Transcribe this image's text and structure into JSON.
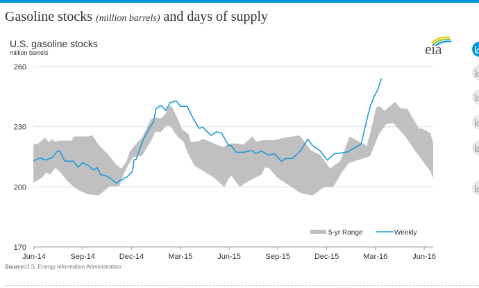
{
  "page": {
    "title_main": "Gasoline stocks",
    "title_units": "(million barrels)",
    "title_rest": "and days of supply",
    "accent_color": "#0096d7"
  },
  "logo": {
    "text": "eia",
    "icon": "eia-logo-icon"
  },
  "source": {
    "label": "Source:",
    "text": "U.S. Energy Information Administration"
  },
  "side_buttons": [
    {
      "icon": "line-chart-icon",
      "active": true
    },
    {
      "icon": "line-chart-icon",
      "active": false
    },
    {
      "icon": "line-chart-icon",
      "active": false
    },
    {
      "icon": "line-chart-icon",
      "active": false
    },
    {
      "icon": "line-chart-icon",
      "active": false
    },
    {
      "icon": "line-chart-icon",
      "active": false
    }
  ],
  "chart_data": {
    "type": "area",
    "title": "U.S. gasoline stocks",
    "subtitle": "million barrels",
    "xlabel": "",
    "ylabel": "million barrels",
    "x_unit": "months since Jun-14",
    "xlim": [
      0,
      24.55
    ],
    "ylim": [
      170,
      260
    ],
    "yticks": [
      170,
      200,
      230,
      260
    ],
    "ytick_labels": [
      "170",
      "200",
      "230",
      "260"
    ],
    "xticks": [
      0,
      3,
      6,
      9,
      12,
      15,
      18,
      21,
      24
    ],
    "xtick_labels": [
      "Jun-14",
      "Sep-14",
      "Dec-14",
      "Mar-15",
      "Jun-15",
      "Sep-15",
      "Dec-15",
      "Mar-16",
      "Jun-16"
    ],
    "grid": true,
    "legend": {
      "placement": "bottom-right",
      "entries": [
        "5-yr Range",
        "Weekly"
      ]
    },
    "colors": {
      "range": "#c0c0c0",
      "weekly": "#1a9bd7",
      "grid": "#dddddd",
      "axis": "#999999"
    },
    "series": [
      {
        "name": "5-yr Range",
        "kind": "band",
        "upper": [
          [
            -0.04,
            221.1
          ],
          [
            0.26,
            221.7
          ],
          [
            0.68,
            224.6
          ],
          [
            0.9,
            222.3
          ],
          [
            1.11,
            223.7
          ],
          [
            1.32,
            222.6
          ],
          [
            1.62,
            223.1
          ],
          [
            2.31,
            223.1
          ],
          [
            2.48,
            225.2
          ],
          [
            3.37,
            225.2
          ],
          [
            3.59,
            225.7
          ],
          [
            3.97,
            221.1
          ],
          [
            4.17,
            219.4
          ],
          [
            4.23,
            218.8
          ],
          [
            4.53,
            216.5
          ],
          [
            5.04,
            211.3
          ],
          [
            5.38,
            209.2
          ],
          [
            5.68,
            212.5
          ],
          [
            5.89,
            217.7
          ],
          [
            6.36,
            222.3
          ],
          [
            6.65,
            224.6
          ],
          [
            6.95,
            229.8
          ],
          [
            7.2,
            233.8
          ],
          [
            7.5,
            234.6
          ],
          [
            7.8,
            234.2
          ],
          [
            8.06,
            236.1
          ],
          [
            8.27,
            240.2
          ],
          [
            8.48,
            240.2
          ],
          [
            8.78,
            235
          ],
          [
            9.12,
            228.6
          ],
          [
            9.51,
            226.4
          ],
          [
            9.65,
            222.3
          ],
          [
            10.16,
            222.9
          ],
          [
            10.38,
            224
          ],
          [
            10.72,
            222.9
          ],
          [
            11.23,
            221.1
          ],
          [
            11.66,
            219.9
          ],
          [
            12.0,
            221.7
          ],
          [
            12.87,
            221.1
          ],
          [
            12.44,
            221.7
          ],
          [
            13.44,
            225.2
          ],
          [
            13.65,
            222.6
          ],
          [
            14.15,
            223.4
          ],
          [
            14.71,
            223.2
          ],
          [
            15.44,
            224.6
          ],
          [
            16.33,
            225.7
          ],
          [
            17.05,
            218.2
          ],
          [
            17.61,
            215.9
          ],
          [
            18.21,
            209.2
          ],
          [
            18.85,
            213.0
          ],
          [
            19.41,
            225.1
          ],
          [
            20.47,
            220.5
          ],
          [
            20.7,
            227.5
          ],
          [
            21.04,
            239.6
          ],
          [
            21.26,
            240.4
          ],
          [
            21.56,
            237.9
          ],
          [
            22.2,
            242.5
          ],
          [
            22.54,
            239.2
          ],
          [
            22.96,
            239
          ],
          [
            23.69,
            228.9
          ],
          [
            23.82,
            229.2
          ],
          [
            24.38,
            226.9
          ],
          [
            25.22,
            221.7
          ]
        ],
        "lower": [
          [
            -0.04,
            202.1
          ],
          [
            0.47,
            204.4
          ],
          [
            0.77,
            207.3
          ],
          [
            0.98,
            206.1
          ],
          [
            1.32,
            209.6
          ],
          [
            1.62,
            207.3
          ],
          [
            1.96,
            203.8
          ],
          [
            2.39,
            200.3
          ],
          [
            2.82,
            198
          ],
          [
            3.33,
            196.3
          ],
          [
            3.97,
            195.7
          ],
          [
            4.31,
            198
          ],
          [
            4.65,
            200.3
          ],
          [
            5.25,
            200.3
          ],
          [
            5.47,
            205.5
          ],
          [
            5.81,
            211.3
          ],
          [
            6.11,
            214.8
          ],
          [
            6.32,
            215.3
          ],
          [
            6.57,
            215.3
          ],
          [
            6.78,
            217.1
          ],
          [
            6.87,
            218.8
          ],
          [
            7.2,
            222.9
          ],
          [
            7.46,
            227.5
          ],
          [
            7.84,
            227.5
          ],
          [
            8.1,
            230.4
          ],
          [
            8.4,
            230.4
          ],
          [
            8.58,
            228
          ],
          [
            8.88,
            224.6
          ],
          [
            9.22,
            222.3
          ],
          [
            9.44,
            217.1
          ],
          [
            9.86,
            210.7
          ],
          [
            10.42,
            207.8
          ],
          [
            11.01,
            205
          ],
          [
            11.49,
            201.5
          ],
          [
            11.7,
            199.8
          ],
          [
            12.0,
            204.4
          ],
          [
            12.15,
            205.5
          ],
          [
            12.65,
            200
          ],
          [
            13.0,
            202
          ],
          [
            13.55,
            204.4
          ],
          [
            13.98,
            206.1
          ],
          [
            14.19,
            209.6
          ],
          [
            14.41,
            209.6
          ],
          [
            15.0,
            204.4
          ],
          [
            15.86,
            199.8
          ],
          [
            16.41,
            196.9
          ],
          [
            17.14,
            195.7
          ],
          [
            17.82,
            199.8
          ],
          [
            18.42,
            200
          ],
          [
            18.89,
            206.7
          ],
          [
            19.36,
            211.9
          ],
          [
            20.02,
            213.6
          ],
          [
            20.66,
            215.3
          ],
          [
            21.26,
            226.9
          ],
          [
            21.68,
            231.5
          ],
          [
            22.11,
            231.8
          ],
          [
            22.84,
            225.1
          ],
          [
            23.52,
            217.1
          ],
          [
            24.38,
            207.8
          ],
          [
            24.97,
            204.4
          ]
        ]
      },
      {
        "name": "Weekly",
        "kind": "line",
        "points": [
          [
            -0.04,
            213.0
          ],
          [
            0.38,
            214.5
          ],
          [
            0.68,
            213.4
          ],
          [
            1.11,
            214.5
          ],
          [
            1.41,
            217.7
          ],
          [
            1.58,
            218.0
          ],
          [
            1.88,
            213.0
          ],
          [
            2.18,
            212.7
          ],
          [
            2.39,
            213.0
          ],
          [
            2.73,
            209.9
          ],
          [
            2.99,
            212.1
          ],
          [
            3.33,
            210.7
          ],
          [
            3.67,
            208.4
          ],
          [
            3.89,
            209.6
          ],
          [
            4.1,
            206.1
          ],
          [
            4.44,
            205.5
          ],
          [
            4.78,
            203.8
          ],
          [
            5.07,
            201.8
          ],
          [
            5.47,
            203.5
          ],
          [
            5.3,
            203.5
          ],
          [
            5.55,
            204.6
          ],
          [
            5.68,
            204.6
          ],
          [
            6.06,
            207.8
          ],
          [
            6.27,
            213.6
          ],
          [
            6.15,
            213.6
          ],
          [
            6.15,
            213.6
          ],
          [
            6.53,
            219.4
          ],
          [
            6.74,
            224.0
          ],
          [
            7.02,
            228.0
          ],
          [
            7.11,
            229.5
          ],
          [
            7.35,
            232.5
          ],
          [
            7.5,
            239.0
          ],
          [
            7.8,
            240.7
          ],
          [
            8.1,
            238.1
          ],
          [
            8.36,
            241.9
          ],
          [
            8.74,
            243.0
          ],
          [
            9.0,
            240.2
          ],
          [
            9.42,
            240.2
          ],
          [
            9.81,
            233.8
          ],
          [
            10.16,
            229.2
          ],
          [
            10.38,
            229.8
          ],
          [
            10.89,
            225.7
          ],
          [
            11.23,
            227.5
          ],
          [
            11.53,
            226.9
          ],
          [
            11.96,
            220.8
          ],
          [
            12.15,
            220.5
          ],
          [
            12.91,
            217.3
          ],
          [
            12.44,
            217.3
          ],
          [
            13.42,
            218.2
          ],
          [
            13.64,
            216.5
          ],
          [
            13.98,
            217.9
          ],
          [
            14.41,
            215.9
          ],
          [
            14.79,
            216.5
          ],
          [
            15.22,
            212.7
          ],
          [
            15.47,
            214.2
          ],
          [
            15.9,
            214.2
          ],
          [
            16.41,
            218.2
          ],
          [
            16.84,
            223.8
          ],
          [
            17.14,
            220.5
          ],
          [
            17.57,
            218.2
          ],
          [
            18.04,
            213.3
          ],
          [
            18.46,
            216.5
          ],
          [
            18.76,
            216.8
          ],
          [
            19.03,
            217.1
          ],
          [
            19.27,
            217.4
          ],
          [
            19.84,
            220.0
          ],
          [
            20.13,
            221.5
          ],
          [
            20.43,
            232.1
          ],
          [
            20.68,
            240.2
          ],
          [
            20.9,
            244.8
          ],
          [
            21.16,
            248.8
          ],
          [
            21.37,
            254.2
          ]
        ]
      }
    ]
  }
}
